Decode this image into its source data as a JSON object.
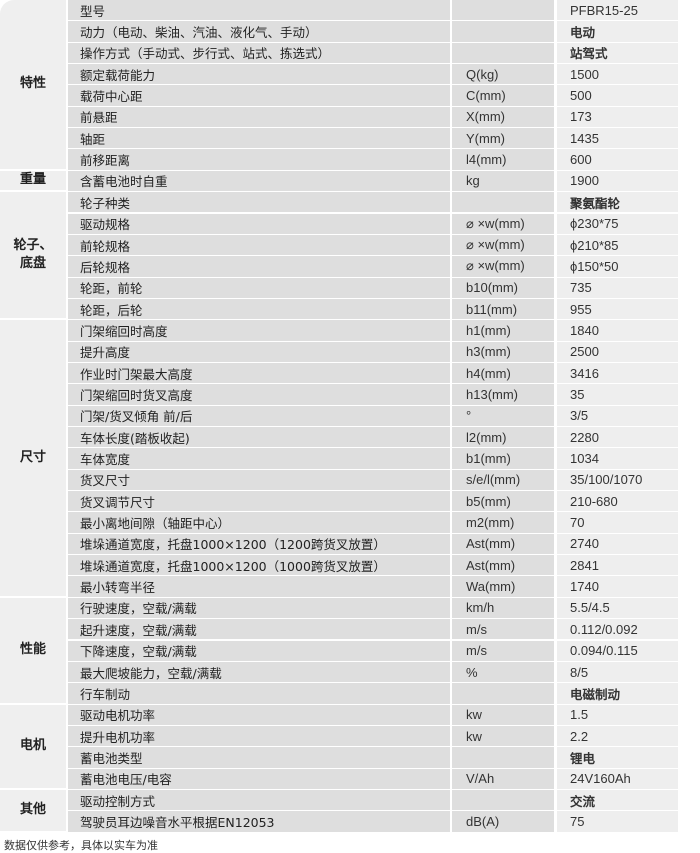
{
  "groups": [
    {
      "label": "特性",
      "rows": [
        {
          "spec": "型号",
          "unit": "",
          "value": "PFBR15-25"
        },
        {
          "spec": "动力（电动、柴油、汽油、液化气、手动）",
          "unit": "",
          "value": "电动"
        },
        {
          "spec": "操作方式（手动式、步行式、站式、拣选式）",
          "unit": "",
          "value": "站驾式"
        },
        {
          "spec": "额定载荷能力",
          "unit": "Q(kg)",
          "value": "1500"
        },
        {
          "spec": "载荷中心距",
          "unit": "C(mm)",
          "value": "500"
        },
        {
          "spec": "前悬距",
          "unit": "X(mm)",
          "value": "173"
        },
        {
          "spec": "轴距",
          "unit": "Y(mm)",
          "value": "1435"
        },
        {
          "spec": "前移距离",
          "unit": "l4(mm)",
          "value": "600"
        }
      ]
    },
    {
      "label": "重量",
      "rows": [
        {
          "spec": "含蓄电池时自重",
          "unit": "kg",
          "value": "1900"
        }
      ]
    },
    {
      "label": "轮子、\n底盘",
      "rows": [
        {
          "spec": "轮子种类",
          "unit": "",
          "value": "聚氨酯轮"
        },
        {
          "spec": "驱动规格",
          "unit": "⌀ ×w(mm)",
          "value": "ϕ230*75"
        },
        {
          "spec": "前轮规格",
          "unit": "⌀ ×w(mm)",
          "value": "ϕ210*85"
        },
        {
          "spec": "后轮规格",
          "unit": "⌀ ×w(mm)",
          "value": "ϕ150*50"
        },
        {
          "spec": "轮距，前轮",
          "unit": "b10(mm)",
          "value": "735"
        },
        {
          "spec": "轮距，后轮",
          "unit": "b11(mm)",
          "value": "955"
        }
      ]
    },
    {
      "label": "尺寸",
      "rows": [
        {
          "spec": "门架缩回时高度",
          "unit": "h1(mm)",
          "value": "1840"
        },
        {
          "spec": "提升高度",
          "unit": "h3(mm)",
          "value": "2500"
        },
        {
          "spec": "作业时门架最大高度",
          "unit": "h4(mm)",
          "value": "3416"
        },
        {
          "spec": "门架缩回时货叉高度",
          "unit": "h13(mm)",
          "value": "35"
        },
        {
          "spec": "门架/货叉倾角 前/后",
          "unit": "  °",
          "value": "3/5"
        },
        {
          "spec": "车体长度(踏板收起)",
          "unit": "l2(mm)",
          "value": "2280"
        },
        {
          "spec": "车体宽度",
          "unit": "b1(mm)",
          "value": "1034"
        },
        {
          "spec": "货叉尺寸",
          "unit": "s/e/l(mm)",
          "value": "35/100/1070"
        },
        {
          "spec": "货叉调节尺寸",
          "unit": "b5(mm)",
          "value": "210-680"
        },
        {
          "spec": "最小离地间隙（轴距中心）",
          "unit": "m2(mm)",
          "value": "70"
        },
        {
          "spec": "堆垛通道宽度，托盘1000×1200（1200跨货叉放置）",
          "unit": "Ast(mm)",
          "value": "2740"
        },
        {
          "spec": "堆垛通道宽度，托盘1000×1200（1000跨货叉放置）",
          "unit": "Ast(mm)",
          "value": "2841"
        },
        {
          "spec": "最小转弯半径",
          "unit": "Wa(mm)",
          "value": "1740"
        }
      ]
    },
    {
      "label": "性能",
      "rows": [
        {
          "spec": "行驶速度，空载/满载",
          "unit": "km/h",
          "value": "5.5/4.5"
        },
        {
          "spec": "起升速度，空载/满载",
          "unit": "m/s",
          "value": "0.112/0.092"
        },
        {
          "spec": "下降速度，空载/满载",
          "unit": "m/s",
          "value": "0.094/0.115"
        },
        {
          "spec": "最大爬坡能力，空载/满载",
          "unit": "%",
          "value": "8/5"
        },
        {
          "spec": "行车制动",
          "unit": "",
          "value": "电磁制动"
        }
      ]
    },
    {
      "label": "电机",
      "rows": [
        {
          "spec": "驱动电机功率",
          "unit": "kw",
          "value": "1.5"
        },
        {
          "spec": "提升电机功率",
          "unit": "kw",
          "value": "2.2"
        },
        {
          "spec": "蓄电池类型",
          "unit": "",
          "value": "锂电"
        },
        {
          "spec": "蓄电池电压/电容",
          "unit": "V/Ah",
          "value": "24V160Ah"
        }
      ]
    },
    {
      "label": "其他",
      "rows": [
        {
          "spec": "驱动控制方式",
          "unit": "",
          "value": "交流"
        },
        {
          "spec": "驾驶员耳边噪音水平根据EN12053",
          "unit": "dB(A)",
          "value": "75"
        }
      ]
    }
  ],
  "footer": {
    "note": "数据仅供参考，具体以实车为准"
  }
}
